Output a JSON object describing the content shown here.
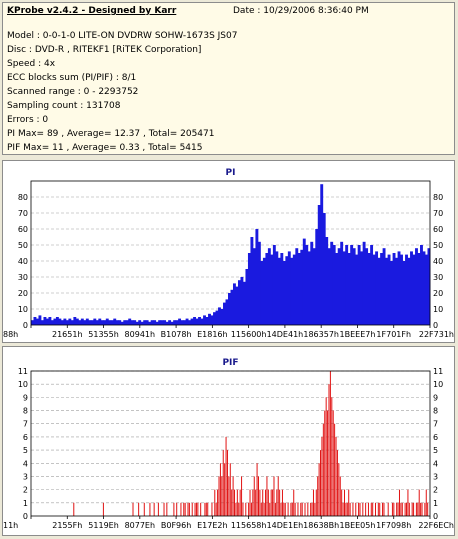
{
  "info": {
    "title": "KProbe v2.4.2 - Designed by Karr",
    "date": "Date : 10/29/2006 8:36:40 PM",
    "lines": [
      "Model : 0-0-1-0 LITE-ON DVDRW SOHW-1673S JS07",
      "Disc : DVD-R , RITEKF1 [RiTEK Corporation]",
      "Speed : 4x",
      "ECC blocks sum (PI/PIF) : 8/1",
      "Scanned range : 0 - 2293752",
      "Sampling count : 131708",
      "Errors : 0",
      "PI Max= 89 , Average= 12.37 , Total= 205471",
      "PIF Max= 11 , Average= 0.33 , Total= 5415"
    ]
  },
  "colors": {
    "pi": "#1a1adf",
    "pif": "#e01010",
    "title": "#1a1a8c",
    "grid": "#a0a0a0"
  },
  "chart_data": [
    {
      "type": "area",
      "title": "PI",
      "ylim": [
        0,
        90
      ],
      "yticks": [
        0,
        10,
        20,
        30,
        40,
        50,
        60,
        70,
        80
      ],
      "xtick_labels": [
        "88h",
        "21651h",
        "51355h",
        "80941h",
        "B1078h",
        "E1816h",
        "115600h",
        "14DE41h",
        "186357h",
        "1BEEE7h",
        "1F701Fh",
        "22F731h"
      ],
      "grid": "dashed horizontal",
      "series": [
        {
          "values": [
            3,
            5,
            4,
            6,
            3,
            5,
            4,
            5,
            3,
            4,
            5,
            4,
            3,
            4,
            3,
            4,
            3,
            5,
            4,
            3,
            4,
            3,
            4,
            3,
            3,
            4,
            3,
            4,
            3,
            3,
            4,
            3,
            3,
            4,
            3,
            3,
            2,
            3,
            3,
            4,
            3,
            3,
            2,
            3,
            2,
            3,
            3,
            2,
            3,
            3,
            2,
            3,
            3,
            3,
            2,
            3,
            2,
            3,
            3,
            4,
            3,
            3,
            4,
            3,
            4,
            5,
            4,
            5,
            4,
            6,
            5,
            7,
            6,
            8,
            9,
            11,
            10,
            14,
            16,
            20,
            22,
            26,
            24,
            28,
            30,
            27,
            35,
            45,
            55,
            48,
            60,
            52,
            40,
            42,
            45,
            48,
            44,
            50,
            46,
            42,
            45,
            40,
            43,
            46,
            42,
            44,
            48,
            45,
            47,
            54,
            50,
            46,
            52,
            48,
            60,
            75,
            88,
            70,
            55,
            48,
            52,
            50,
            45,
            48,
            52,
            46,
            50,
            45,
            50,
            48,
            44,
            50,
            46,
            52,
            48,
            45,
            50,
            44,
            46,
            42,
            45,
            48,
            42,
            44,
            40,
            45,
            42,
            46,
            44,
            40,
            44,
            42,
            46,
            44,
            48,
            45,
            50,
            46,
            44,
            48
          ]
        }
      ]
    },
    {
      "type": "bar",
      "title": "PIF",
      "ylim": [
        0,
        11
      ],
      "yticks": [
        0,
        1,
        2,
        3,
        4,
        5,
        6,
        7,
        8,
        9,
        10,
        11
      ],
      "xtick_labels": [
        "11h",
        "2155Fh",
        "5119Eh",
        "8077Eh",
        "B0F96h",
        "E17E2h",
        "115658h",
        "14DE1Eh",
        "18638Bh",
        "1BEE05h",
        "1F7098h",
        "22F6ECh"
      ],
      "grid": "dashed horizontal",
      "series": [
        {
          "values": [
            0,
            0,
            0,
            0,
            0,
            0,
            0,
            0,
            0,
            0,
            0,
            0,
            0,
            0,
            0,
            0,
            0,
            0,
            0,
            0,
            0,
            0,
            0,
            0,
            0,
            0,
            0,
            0,
            0,
            0,
            1,
            0,
            0,
            0,
            0,
            0,
            0,
            0,
            0,
            0,
            0,
            0,
            0,
            0,
            0,
            0,
            0,
            0,
            0,
            0,
            0,
            1,
            0,
            0,
            0,
            0,
            0,
            0,
            0,
            0,
            0,
            0,
            0,
            0,
            0,
            0,
            0,
            0,
            0,
            0,
            0,
            0,
            1,
            0,
            0,
            0,
            1,
            0,
            0,
            0,
            1,
            0,
            0,
            0,
            1,
            0,
            0,
            1,
            0,
            0,
            1,
            0,
            0,
            0,
            1,
            0,
            1,
            0,
            0,
            0,
            0,
            1,
            0,
            1,
            0,
            0,
            1,
            0,
            1,
            1,
            0,
            1,
            1,
            0,
            1,
            0,
            1,
            1,
            1,
            0,
            1,
            0,
            0,
            1,
            1,
            1,
            0,
            0,
            1,
            0,
            2,
            1,
            2,
            3,
            4,
            3,
            5,
            4,
            6,
            5,
            3,
            4,
            2,
            3,
            2,
            1,
            2,
            1,
            2,
            3,
            1,
            0,
            1,
            0,
            1,
            2,
            1,
            2,
            3,
            2,
            4,
            3,
            2,
            1,
            2,
            1,
            2,
            3,
            2,
            1,
            2,
            2,
            3,
            1,
            2,
            3,
            2,
            1,
            2,
            1,
            1,
            0,
            1,
            0,
            1,
            1,
            2,
            1,
            0,
            1,
            0,
            1,
            1,
            0,
            1,
            0,
            1,
            0,
            1,
            1,
            2,
            1,
            2,
            3,
            4,
            5,
            6,
            7,
            8,
            9,
            8,
            10,
            11,
            9,
            8,
            7,
            6,
            5,
            4,
            3,
            2,
            1,
            2,
            1,
            1,
            2,
            1,
            0,
            1,
            0,
            1,
            0,
            1,
            1,
            0,
            1,
            0,
            1,
            0,
            1,
            0,
            1,
            1,
            0,
            1,
            0,
            1,
            1,
            0,
            1,
            1,
            0,
            0,
            1,
            0,
            0,
            1,
            1,
            0,
            1,
            1,
            2,
            1,
            1,
            0,
            1,
            1,
            2,
            1,
            0,
            1,
            1,
            0,
            1,
            1,
            2,
            1,
            1,
            0,
            1,
            2,
            1,
            0
          ]
        }
      ]
    }
  ]
}
